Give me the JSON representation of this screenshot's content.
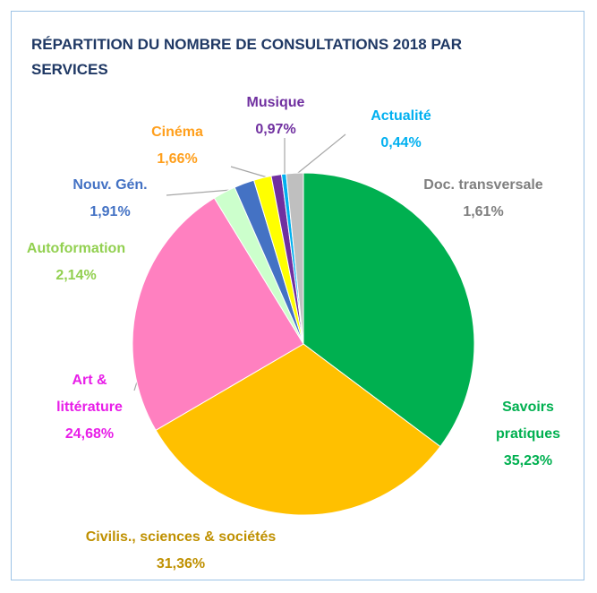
{
  "chart_data": {
    "type": "pie",
    "title": "RÉPARTITION DU NOMBRE DE CONSULTATIONS 2018 PAR SERVICES",
    "categories": [
      "Savoirs pratiques",
      "Civilis., sciences & sociétés",
      "Art & littérature",
      "Autoformation",
      "Nouv. Gén.",
      "Cinéma",
      "Musique",
      "Actualité",
      "Doc. transversale"
    ],
    "values": [
      35.23,
      31.36,
      24.68,
      2.14,
      1.91,
      1.66,
      0.97,
      0.44,
      1.61
    ],
    "value_labels": [
      "35,23%",
      "31,36%",
      "24,68%",
      "2,14%",
      "1,91%",
      "1,66%",
      "0,97%",
      "0,44%",
      "1,61%"
    ],
    "colors": [
      "#00b050",
      "#ffc000",
      "#ff80c0",
      "#ccffcc",
      "#4472c4",
      "#ffff00",
      "#7030a0",
      "#00b0f0",
      "#bfbfbf"
    ],
    "label_colors": [
      "#00b050",
      "#bf9000",
      "#e81ee8",
      "#92d050",
      "#4472c4",
      "#ff9f1c",
      "#7030a0",
      "#00b0f0",
      "#7f7f7f"
    ]
  }
}
